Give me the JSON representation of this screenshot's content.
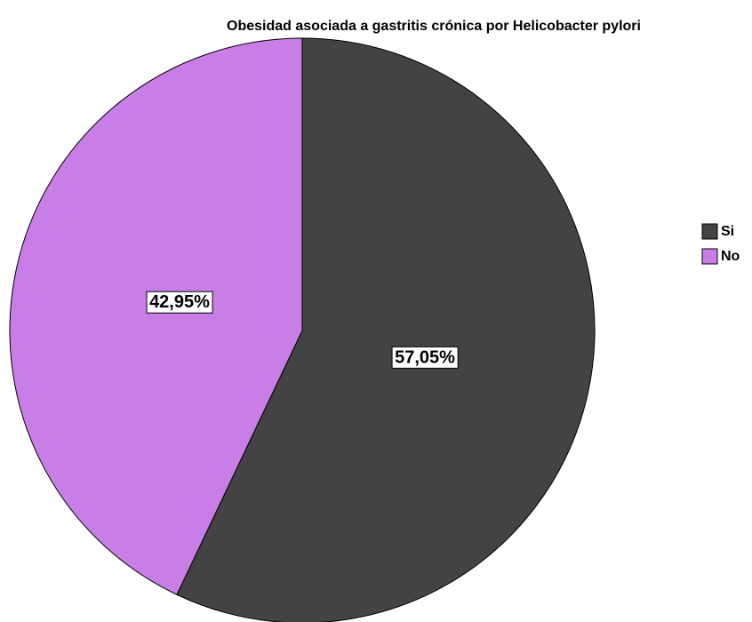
{
  "chart_data": {
    "type": "pie",
    "title": "Obesidad asociada a gastritis crónica por Helicobacter pylori",
    "categories": [
      "Si",
      "No"
    ],
    "values": [
      57.05,
      42.95
    ],
    "value_labels": [
      "57,05%",
      "42,95%"
    ],
    "colors": [
      "#434343",
      "#c87ee6"
    ],
    "legend": "right"
  }
}
